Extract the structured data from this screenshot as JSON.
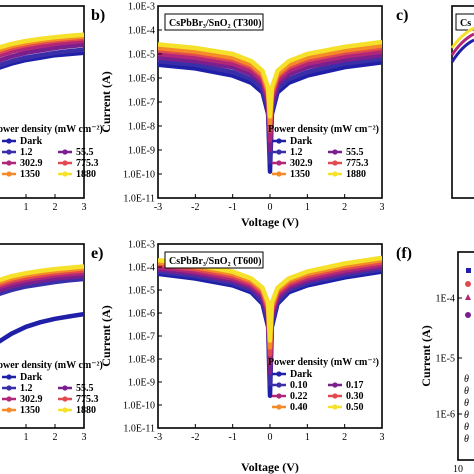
{
  "chart_data": [
    {
      "panel": "a",
      "type": "line",
      "visible": "partial",
      "xlim": [
        -3,
        3
      ],
      "xticks": [
        "1",
        "2",
        "3"
      ],
      "legend_title": "ower density (mW cm⁻²)",
      "legend_labels": [
        "Dark",
        "1.2",
        "55.5",
        "302.9",
        "775.3",
        "1350",
        "1880"
      ],
      "series": [
        {
          "name": "Dark",
          "color": "#1f1fa8",
          "x": [
            0,
            0.5,
            1,
            1.5,
            2,
            2.5,
            3
          ],
          "y": [
            -5.6,
            -5.4,
            -5.25,
            -5.15,
            -5.05,
            -5.0,
            -4.95
          ]
        },
        {
          "name": "1.2",
          "color": "#3a2fa8",
          "x": [
            0,
            0.5,
            1,
            1.5,
            2,
            2.5,
            3
          ],
          "y": [
            -5.5,
            -5.3,
            -5.15,
            -5.05,
            -4.95,
            -4.88,
            -4.82
          ]
        },
        {
          "name": "55.5",
          "color": "#7a1f8e",
          "x": [
            0,
            0.5,
            1,
            1.5,
            2,
            2.5,
            3
          ],
          "y": [
            -5.3,
            -5.1,
            -4.95,
            -4.85,
            -4.75,
            -4.68,
            -4.62
          ]
        },
        {
          "name": "302.9",
          "color": "#b0277a",
          "x": [
            0,
            0.5,
            1,
            1.5,
            2,
            2.5,
            3
          ],
          "y": [
            -5.1,
            -4.9,
            -4.77,
            -4.67,
            -4.58,
            -4.51,
            -4.46
          ]
        },
        {
          "name": "775.3",
          "color": "#e04a50",
          "x": [
            0,
            0.5,
            1,
            1.5,
            2,
            2.5,
            3
          ],
          "y": [
            -4.95,
            -4.76,
            -4.63,
            -4.53,
            -4.45,
            -4.39,
            -4.34
          ]
        },
        {
          "name": "1350",
          "color": "#f58a28",
          "x": [
            0,
            0.5,
            1,
            1.5,
            2,
            2.5,
            3
          ],
          "y": [
            -4.85,
            -4.67,
            -4.55,
            -4.45,
            -4.38,
            -4.32,
            -4.27
          ]
        },
        {
          "name": "1880",
          "color": "#f5e02a",
          "x": [
            0,
            0.5,
            1,
            1.5,
            2,
            2.5,
            3
          ],
          "y": [
            -4.75,
            -4.58,
            -4.46,
            -4.37,
            -4.3,
            -4.24,
            -4.2
          ]
        }
      ]
    },
    {
      "panel": "b",
      "type": "line",
      "title": "CsPbBr₃/SnO₂ (T300)",
      "xlabel": "Voltage (V)",
      "ylabel": "Current (A)",
      "xlim": [
        -3,
        3
      ],
      "ylim": [
        -11,
        -3
      ],
      "yscale": "log",
      "xticks": [
        "-3",
        "-2",
        "-1",
        "0",
        "1",
        "2",
        "3"
      ],
      "yticks": [
        "1.0E-11",
        "1.0E-10",
        "1.0E-9",
        "1.0E-8",
        "1.0E-7",
        "1.0E-6",
        "1.0E-5",
        "1.0E-4",
        "1.0E-3"
      ],
      "legend_title": "Power density (mW cm⁻²)",
      "legend_labels": [
        "Dark",
        "1.2",
        "55.5",
        "302.9",
        "775.3",
        "1350",
        "1880"
      ],
      "series": [
        {
          "name": "Dark",
          "color": "#1f1fa8",
          "x": [
            -3,
            -2,
            -1,
            -0.5,
            -0.2,
            -0.05,
            0,
            0.05,
            0.2,
            0.5,
            1,
            2,
            3
          ],
          "y": [
            -5.45,
            -5.6,
            -5.9,
            -6.2,
            -6.6,
            -7.5,
            -9.9,
            -7.5,
            -6.6,
            -6.2,
            -5.9,
            -5.55,
            -5.35
          ]
        },
        {
          "name": "1.2",
          "color": "#3a2fa8",
          "x": [
            -3,
            -2,
            -1,
            -0.5,
            -0.2,
            -0.05,
            0,
            0.05,
            0.2,
            0.5,
            1,
            2,
            3
          ],
          "y": [
            -5.3,
            -5.45,
            -5.75,
            -6.05,
            -6.45,
            -7.3,
            -9.5,
            -7.3,
            -6.45,
            -6.05,
            -5.75,
            -5.4,
            -5.2
          ]
        },
        {
          "name": "55.5",
          "color": "#7a1f8e",
          "x": [
            -3,
            -2,
            -1,
            -0.5,
            -0.2,
            -0.05,
            0,
            0.05,
            0.2,
            0.5,
            1,
            2,
            3
          ],
          "y": [
            -5.15,
            -5.3,
            -5.55,
            -5.85,
            -6.25,
            -7.1,
            -9.0,
            -7.1,
            -6.25,
            -5.85,
            -5.55,
            -5.25,
            -5.05
          ]
        },
        {
          "name": "302.9",
          "color": "#b0277a",
          "x": [
            -3,
            -2,
            -1,
            -0.5,
            -0.2,
            -0.05,
            0,
            0.05,
            0.2,
            0.5,
            1,
            2,
            3
          ],
          "y": [
            -5.0,
            -5.15,
            -5.4,
            -5.7,
            -6.1,
            -6.9,
            -8.6,
            -6.9,
            -6.1,
            -5.7,
            -5.4,
            -5.1,
            -4.9
          ]
        },
        {
          "name": "775.3",
          "color": "#e04a50",
          "x": [
            -3,
            -2,
            -1,
            -0.5,
            -0.2,
            -0.05,
            0,
            0.05,
            0.2,
            0.5,
            1,
            2,
            3
          ],
          "y": [
            -4.85,
            -5.0,
            -5.25,
            -5.55,
            -5.95,
            -6.7,
            -8.2,
            -6.7,
            -5.95,
            -5.55,
            -5.25,
            -4.95,
            -4.75
          ]
        },
        {
          "name": "1350",
          "color": "#f58a28",
          "x": [
            -3,
            -2,
            -1,
            -0.5,
            -0.2,
            -0.05,
            0,
            0.05,
            0.2,
            0.5,
            1,
            2,
            3
          ],
          "y": [
            -4.75,
            -4.9,
            -5.15,
            -5.45,
            -5.85,
            -6.55,
            -7.9,
            -6.55,
            -5.85,
            -5.45,
            -5.15,
            -4.85,
            -4.65
          ]
        },
        {
          "name": "1880",
          "color": "#f5e02a",
          "x": [
            -3,
            -2,
            -1,
            -0.5,
            -0.2,
            -0.05,
            0,
            0.05,
            0.2,
            0.5,
            1,
            2,
            3
          ],
          "y": [
            -4.6,
            -4.75,
            -5.0,
            -5.3,
            -5.7,
            -6.4,
            -7.6,
            -6.4,
            -5.7,
            -5.3,
            -5.0,
            -4.7,
            -4.5
          ]
        }
      ]
    },
    {
      "panel": "c",
      "type": "line",
      "visible": "partial",
      "title": "Cs",
      "yscale": "log"
    },
    {
      "panel": "d",
      "type": "line",
      "visible": "partial",
      "xlim": [
        -3,
        3
      ],
      "xticks": [
        "1",
        "2",
        "3"
      ],
      "legend_title": "ower density (mW cm⁻²)",
      "legend_labels": [
        "Dark",
        "1.2",
        "55.5",
        "302.9",
        "775.3",
        "1350",
        "1880"
      ],
      "series": [
        {
          "name": "Dark",
          "color": "#1f1fa8",
          "x": [
            0,
            0.5,
            1,
            1.5,
            2,
            2.5,
            3
          ],
          "y": [
            -7.3,
            -6.9,
            -6.6,
            -6.4,
            -6.25,
            -6.15,
            -6.05
          ]
        },
        {
          "name": "1.2",
          "color": "#3a2fa8",
          "x": [
            0,
            0.5,
            1,
            1.5,
            2,
            2.5,
            3
          ],
          "y": [
            -5.2,
            -5.0,
            -4.85,
            -4.75,
            -4.65,
            -4.58,
            -4.52
          ]
        },
        {
          "name": "55.5",
          "color": "#7a1f8e",
          "x": [
            0,
            0.5,
            1,
            1.5,
            2,
            2.5,
            3
          ],
          "y": [
            -5.05,
            -4.85,
            -4.7,
            -4.6,
            -4.5,
            -4.44,
            -4.38
          ]
        },
        {
          "name": "302.9",
          "color": "#b0277a",
          "x": [
            0,
            0.5,
            1,
            1.5,
            2,
            2.5,
            3
          ],
          "y": [
            -4.9,
            -4.7,
            -4.56,
            -4.46,
            -4.37,
            -4.31,
            -4.25
          ]
        },
        {
          "name": "775.3",
          "color": "#e04a50",
          "x": [
            0,
            0.5,
            1,
            1.5,
            2,
            2.5,
            3
          ],
          "y": [
            -4.8,
            -4.6,
            -4.46,
            -4.36,
            -4.27,
            -4.21,
            -4.15
          ]
        },
        {
          "name": "1350",
          "color": "#f58a28",
          "x": [
            0,
            0.5,
            1,
            1.5,
            2,
            2.5,
            3
          ],
          "y": [
            -4.7,
            -4.5,
            -4.36,
            -4.26,
            -4.18,
            -4.12,
            -4.06
          ]
        },
        {
          "name": "1880",
          "color": "#f5e02a",
          "x": [
            0,
            0.5,
            1,
            1.5,
            2,
            2.5,
            3
          ],
          "y": [
            -4.6,
            -4.4,
            -4.27,
            -4.17,
            -4.09,
            -4.03,
            -3.98
          ]
        }
      ]
    },
    {
      "panel": "e",
      "type": "line",
      "title": "CsPbBr₃/SnO₂ (T600)",
      "xlabel": "Voltage (V)",
      "ylabel": "Current (A)",
      "xlim": [
        -3,
        3
      ],
      "ylim": [
        -11,
        -3
      ],
      "yscale": "log",
      "xticks": [
        "-3",
        "-2",
        "-1",
        "0",
        "1",
        "2",
        "3"
      ],
      "yticks": [
        "1.0E-11",
        "1.0E-10",
        "1.0E-9",
        "1.0E-8",
        "1.0E-7",
        "1.0E-6",
        "1.0E-5",
        "1.0E-4",
        "1.0E-3"
      ],
      "legend_title": "Power density (mW cm⁻²)",
      "legend_labels": [
        "Dark",
        "0.10",
        "0.17",
        "0.22",
        "0.30",
        "0.40",
        "0.50"
      ],
      "series": [
        {
          "name": "Dark",
          "color": "#1f1fa8",
          "x": [
            -3,
            -2,
            -1,
            -0.5,
            -0.2,
            -0.05,
            0,
            0.05,
            0.2,
            0.5,
            1,
            2,
            3
          ],
          "y": [
            -4.3,
            -4.5,
            -4.8,
            -5.1,
            -5.6,
            -6.6,
            -9.6,
            -6.6,
            -5.6,
            -5.1,
            -4.8,
            -4.45,
            -4.2
          ]
        },
        {
          "name": "0.10",
          "color": "#3a2fa8",
          "x": [
            -3,
            -2,
            -1,
            -0.5,
            -0.2,
            -0.05,
            0,
            0.05,
            0.2,
            0.5,
            1,
            2,
            3
          ],
          "y": [
            -4.2,
            -4.4,
            -4.7,
            -5.0,
            -5.5,
            -6.4,
            -9.1,
            -6.4,
            -5.5,
            -5.0,
            -4.7,
            -4.35,
            -4.1
          ]
        },
        {
          "name": "0.17",
          "color": "#7a1f8e",
          "x": [
            -3,
            -2,
            -1,
            -0.5,
            -0.2,
            -0.05,
            0,
            0.05,
            0.2,
            0.5,
            1,
            2,
            3
          ],
          "y": [
            -4.1,
            -4.3,
            -4.6,
            -4.9,
            -5.35,
            -6.2,
            -8.6,
            -6.2,
            -5.35,
            -4.9,
            -4.6,
            -4.25,
            -4.0
          ]
        },
        {
          "name": "0.22",
          "color": "#b0277a",
          "x": [
            -3,
            -2,
            -1,
            -0.5,
            -0.2,
            -0.05,
            0,
            0.05,
            0.2,
            0.5,
            1,
            2,
            3
          ],
          "y": [
            -4.0,
            -4.2,
            -4.5,
            -4.8,
            -5.2,
            -6.0,
            -8.2,
            -6.0,
            -5.2,
            -4.8,
            -4.5,
            -4.15,
            -3.9
          ]
        },
        {
          "name": "0.30",
          "color": "#e04a50",
          "x": [
            -3,
            -2,
            -1,
            -0.5,
            -0.2,
            -0.05,
            0,
            0.05,
            0.2,
            0.5,
            1,
            2,
            3
          ],
          "y": [
            -3.9,
            -4.1,
            -4.4,
            -4.7,
            -5.1,
            -5.85,
            -7.8,
            -5.85,
            -5.1,
            -4.7,
            -4.4,
            -4.05,
            -3.8
          ]
        },
        {
          "name": "0.40",
          "color": "#f58a28",
          "x": [
            -3,
            -2,
            -1,
            -0.5,
            -0.2,
            -0.05,
            0,
            0.05,
            0.2,
            0.5,
            1,
            2,
            3
          ],
          "y": [
            -3.8,
            -4.0,
            -4.3,
            -4.6,
            -5.0,
            -5.7,
            -7.5,
            -5.7,
            -5.0,
            -4.6,
            -4.3,
            -3.95,
            -3.7
          ]
        },
        {
          "name": "0.50",
          "color": "#f5e02a",
          "x": [
            -3,
            -2,
            -1,
            -0.5,
            -0.2,
            -0.05,
            0,
            0.05,
            0.2,
            0.5,
            1,
            2,
            3
          ],
          "y": [
            -3.7,
            -3.9,
            -4.2,
            -4.5,
            -4.9,
            -5.55,
            -7.2,
            -5.55,
            -4.9,
            -4.5,
            -4.2,
            -3.85,
            -3.6
          ]
        }
      ]
    },
    {
      "panel": "f",
      "type": "scatter",
      "visible": "partial",
      "ylabel": "Current (A)",
      "yscale": "log",
      "yticks": [
        "1E-6",
        "1E-5",
        "1E-4"
      ],
      "xticks": [
        "10"
      ]
    }
  ]
}
